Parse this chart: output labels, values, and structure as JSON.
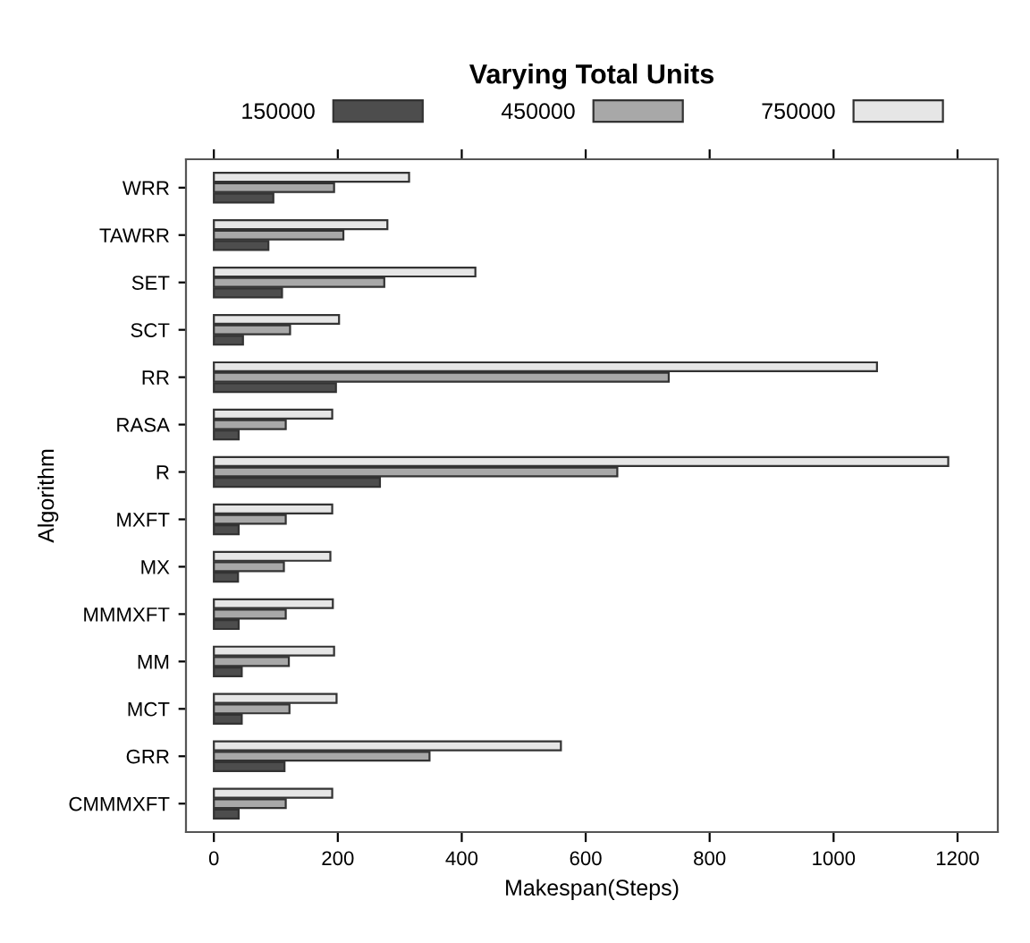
{
  "chart_data": {
    "type": "bar",
    "orientation": "horizontal",
    "xlabel": "Makespan(Steps)",
    "ylabel": "Algorithm",
    "legend_title": "Varying Total Units",
    "legend": "top",
    "categories": [
      "WRR",
      "TAWRR",
      "SET",
      "SCT",
      "RR",
      "RASA",
      "R",
      "MXFT",
      "MX",
      "MMMXFT",
      "MM",
      "MCT",
      "GRR",
      "CMMMXFT"
    ],
    "series": [
      {
        "name": "150000",
        "color": "#4d4d4d",
        "values": [
          96,
          88,
          110,
          47,
          197,
          40,
          268,
          40,
          39,
          40,
          45,
          45,
          114,
          40
        ]
      },
      {
        "name": "450000",
        "color": "#a8a8a8",
        "values": [
          194,
          209,
          275,
          123,
          734,
          116,
          651,
          116,
          113,
          116,
          121,
          122,
          348,
          116
        ]
      },
      {
        "name": "750000",
        "color": "#e6e6e6",
        "values": [
          315,
          280,
          422,
          202,
          1070,
          191,
          1185,
          191,
          188,
          192,
          194,
          198,
          560,
          191
        ]
      }
    ],
    "xlim": [
      -45,
      1265
    ],
    "xticks": [
      0,
      200,
      400,
      600,
      800,
      1000,
      1200
    ],
    "grid": false
  }
}
